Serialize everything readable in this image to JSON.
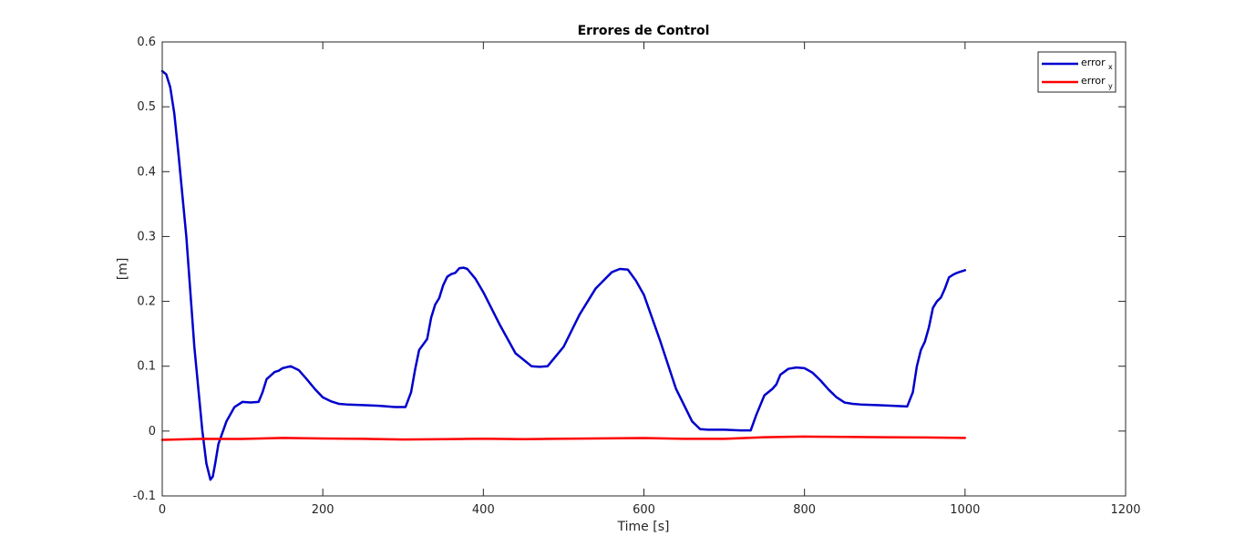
{
  "chart_data": {
    "type": "line",
    "title": "Errores de Control",
    "xlabel": "Time [s]",
    "ylabel": "[m]",
    "xlim": [
      0,
      1200
    ],
    "ylim": [
      -0.1,
      0.6
    ],
    "xticks": [
      0,
      200,
      400,
      600,
      800,
      1000,
      1200
    ],
    "xtick_labels": [
      "0",
      "200",
      "400",
      "600",
      "800",
      "1000",
      "1200"
    ],
    "yticks": [
      -0.1,
      0,
      0.1,
      0.2,
      0.3,
      0.4,
      0.5,
      0.6
    ],
    "ytick_labels": [
      "-0.1",
      "0",
      "0.1",
      "0.2",
      "0.3",
      "0.4",
      "0.5",
      "0.6"
    ],
    "grid": false,
    "legend_position": "top-right",
    "series": [
      {
        "name": "error",
        "subscript": "x",
        "color": "#0000cc",
        "x": [
          0,
          5,
          10,
          15,
          20,
          30,
          40,
          50,
          55,
          60,
          63,
          66,
          70,
          80,
          90,
          100,
          110,
          120,
          125,
          130,
          140,
          145,
          150,
          160,
          170,
          180,
          190,
          200,
          210,
          220,
          230,
          250,
          270,
          290,
          303,
          310,
          315,
          320,
          330,
          335,
          340,
          345,
          350,
          355,
          360,
          365,
          370,
          375,
          380,
          390,
          400,
          420,
          440,
          460,
          470,
          480,
          490,
          500,
          510,
          520,
          540,
          560,
          570,
          580,
          590,
          600,
          620,
          640,
          660,
          670,
          680,
          700,
          720,
          733,
          740,
          750,
          760,
          765,
          770,
          780,
          790,
          800,
          810,
          820,
          830,
          840,
          850,
          860,
          870,
          890,
          910,
          928,
          935,
          940,
          945,
          950,
          955,
          960,
          965,
          970,
          975,
          980,
          985,
          990,
          995,
          1000
        ],
        "y": [
          0.555,
          0.55,
          0.53,
          0.49,
          0.43,
          0.3,
          0.13,
          0.0,
          -0.05,
          -0.075,
          -0.07,
          -0.05,
          -0.02,
          0.015,
          0.037,
          0.045,
          0.044,
          0.045,
          0.06,
          0.08,
          0.091,
          0.093,
          0.097,
          0.1,
          0.094,
          0.08,
          0.065,
          0.052,
          0.046,
          0.042,
          0.041,
          0.04,
          0.039,
          0.037,
          0.037,
          0.06,
          0.095,
          0.125,
          0.142,
          0.175,
          0.195,
          0.205,
          0.225,
          0.238,
          0.242,
          0.244,
          0.251,
          0.252,
          0.25,
          0.235,
          0.214,
          0.165,
          0.12,
          0.1,
          0.099,
          0.1,
          0.115,
          0.13,
          0.155,
          0.18,
          0.22,
          0.245,
          0.25,
          0.249,
          0.232,
          0.21,
          0.14,
          0.065,
          0.015,
          0.003,
          0.002,
          0.002,
          0.001,
          0.001,
          0.025,
          0.055,
          0.065,
          0.072,
          0.087,
          0.096,
          0.098,
          0.097,
          0.09,
          0.078,
          0.064,
          0.052,
          0.044,
          0.042,
          0.041,
          0.04,
          0.039,
          0.038,
          0.06,
          0.1,
          0.125,
          0.138,
          0.16,
          0.19,
          0.2,
          0.206,
          0.22,
          0.237,
          0.241,
          0.244,
          0.246,
          0.248
        ]
      },
      {
        "name": "error",
        "subscript": "y",
        "color": "#ff0000",
        "x": [
          0,
          50,
          100,
          150,
          200,
          250,
          300,
          350,
          400,
          450,
          500,
          550,
          600,
          650,
          700,
          750,
          800,
          850,
          900,
          950,
          1000
        ],
        "y": [
          -0.0135,
          -0.012,
          -0.0122,
          -0.0105,
          -0.0115,
          -0.012,
          -0.013,
          -0.0125,
          -0.0118,
          -0.0125,
          -0.0118,
          -0.0112,
          -0.0108,
          -0.012,
          -0.012,
          -0.0095,
          -0.0085,
          -0.009,
          -0.0095,
          -0.0098,
          -0.0105
        ]
      }
    ]
  }
}
